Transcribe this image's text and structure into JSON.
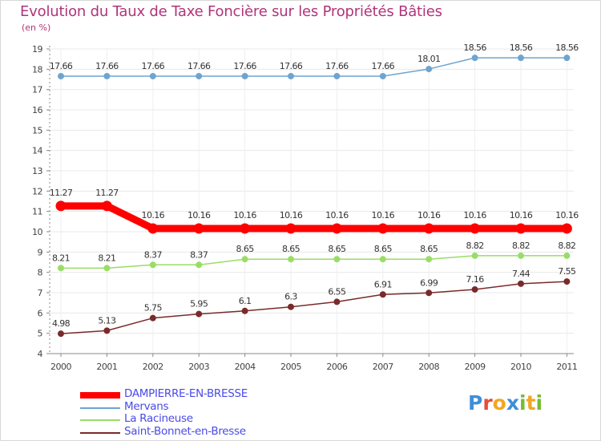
{
  "title": "Evolution du Taux de Taxe Foncière sur les Propriétés Bâties",
  "ylabel": "(en %)",
  "logo": {
    "text": "Proxiti",
    "colors": [
      "#3f8fd8",
      "#e64b3b",
      "#f3a623",
      "#3f8fd8",
      "#77bb33",
      "#f3a623",
      "#77bb33"
    ]
  },
  "chart_data": {
    "type": "line",
    "x": [
      "2000",
      "2001",
      "2002",
      "2003",
      "2004",
      "2005",
      "2006",
      "2007",
      "2008",
      "2009",
      "2010",
      "2011"
    ],
    "yticks": [
      "4",
      "5",
      "6",
      "7",
      "8",
      "9",
      "10",
      "11",
      "12",
      "13",
      "14",
      "15",
      "16",
      "17",
      "18",
      "19"
    ],
    "ylim": [
      4,
      19
    ],
    "grid": true,
    "legend_position": "bottom-left",
    "series": [
      {
        "name": "DAMPIERRE-EN-BRESSE",
        "color": "#ff0000",
        "values": [
          11.27,
          11.27,
          10.16,
          10.16,
          10.16,
          10.16,
          10.16,
          10.16,
          10.16,
          10.16,
          10.16,
          10.16
        ],
        "labels": [
          "11.27",
          "11.27",
          "10.16",
          "10.16",
          "10.16",
          "10.16",
          "10.16",
          "10.16",
          "10.16",
          "10.16",
          "10.16",
          "10.16"
        ]
      },
      {
        "name": "Mervans",
        "color": "#6ea4cf",
        "values": [
          17.66,
          17.66,
          17.66,
          17.66,
          17.66,
          17.66,
          17.66,
          17.66,
          18.01,
          18.56,
          18.56,
          18.56
        ],
        "labels": [
          "17.66",
          "17.66",
          "17.66",
          "17.66",
          "17.66",
          "17.66",
          "17.66",
          "17.66",
          "18.01",
          "18.56",
          "18.56",
          "18.56"
        ]
      },
      {
        "name": "La Racineuse",
        "color": "#99dd66",
        "values": [
          8.21,
          8.21,
          8.37,
          8.37,
          8.65,
          8.65,
          8.65,
          8.65,
          8.65,
          8.82,
          8.82,
          8.82
        ],
        "labels": [
          "8.21",
          "8.21",
          "8.37",
          "8.37",
          "8.65",
          "8.65",
          "8.65",
          "8.65",
          "8.65",
          "8.82",
          "8.82",
          "8.82"
        ]
      },
      {
        "name": "Saint-Bonnet-en-Bresse",
        "color": "#7a2a2a",
        "values": [
          4.98,
          5.13,
          5.75,
          5.95,
          6.1,
          6.3,
          6.55,
          6.91,
          6.99,
          7.16,
          7.44,
          7.55
        ],
        "labels": [
          "4.98",
          "5.13",
          "5.75",
          "5.95",
          "6.1",
          "6.3",
          "6.55",
          "6.91",
          "6.99",
          "7.16",
          "7.44",
          "7.55"
        ]
      }
    ]
  }
}
